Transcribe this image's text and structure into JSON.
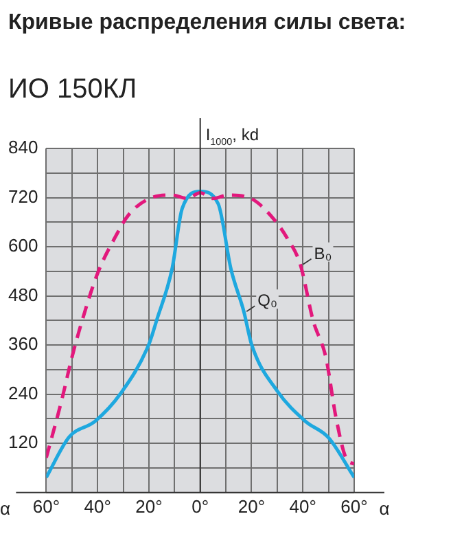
{
  "chart_data": {
    "type": "line",
    "title": "Кривые распределения силы света:",
    "subtitle": "ИО 150КЛ",
    "xlabel": "α",
    "ylabel": "I$_{1000}$, kd",
    "xlim": [
      -60,
      60
    ],
    "xticks": [
      {
        "value": -60,
        "label": "60°"
      },
      {
        "value": -50,
        "label": null
      },
      {
        "value": -40,
        "label": "40°"
      },
      {
        "value": -30,
        "label": null
      },
      {
        "value": -20,
        "label": "20°"
      },
      {
        "value": -10,
        "label": null
      },
      {
        "value": 0,
        "label": "0°"
      },
      {
        "value": 10,
        "label": null
      },
      {
        "value": 20,
        "label": "20°"
      },
      {
        "value": 30,
        "label": null
      },
      {
        "value": 40,
        "label": "40°"
      },
      {
        "value": 50,
        "label": null
      },
      {
        "value": 60,
        "label": "60°"
      }
    ],
    "ylim": [
      0,
      840
    ],
    "yticks": [
      {
        "value": 0,
        "label": null
      },
      {
        "value": 60,
        "label": null
      },
      120,
      {
        "value": 180,
        "label": null
      },
      240,
      {
        "value": 300,
        "label": null
      },
      360,
      {
        "value": 420,
        "label": null
      },
      480,
      {
        "value": 540,
        "label": null
      },
      600,
      {
        "value": 660,
        "label": null
      },
      720,
      {
        "value": 780,
        "label": null
      },
      840
    ],
    "grid": true,
    "legend": false,
    "series": [
      {
        "name": "B₀",
        "color": "#e2187c",
        "line_style": "dashed",
        "x": [
          -60,
          -54,
          -50,
          -46,
          -40,
          -33,
          -28,
          -20,
          -11,
          -5,
          0,
          5,
          11,
          20,
          29,
          34,
          39,
          44,
          49,
          53,
          57,
          60
        ],
        "values": [
          85,
          225,
          330,
          420,
          535,
          625,
          677,
          717,
          726,
          718,
          732,
          718,
          726,
          717,
          665,
          620,
          557,
          420,
          329,
          180,
          82,
          70
        ]
      },
      {
        "name": "Q₀",
        "color": "#1ea8df",
        "line_style": "solid",
        "x": [
          -60,
          -51,
          -41,
          -31,
          -20,
          -17,
          -11,
          -7,
          0,
          7,
          12,
          17,
          20,
          30,
          41,
          50,
          60
        ],
        "values": [
          37,
          136,
          174,
          242,
          362,
          420,
          545,
          694,
          735,
          705,
          545,
          442,
          362,
          248,
          174,
          134,
          37
        ]
      }
    ]
  }
}
